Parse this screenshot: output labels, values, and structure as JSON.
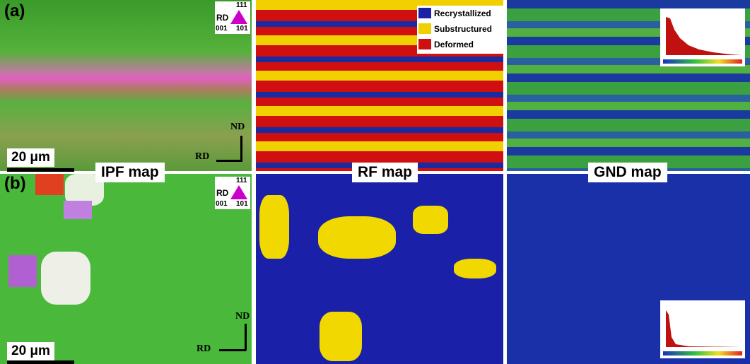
{
  "rows": [
    {
      "label": "(a)",
      "scale_bar": "20 μm",
      "ipf_key": {
        "title": "RD",
        "corners": [
          "111",
          "001",
          "101"
        ]
      },
      "axes": {
        "nd": "ND",
        "rd": "RD"
      }
    },
    {
      "label": "(b)",
      "scale_bar": "20 μm",
      "ipf_key": {
        "title": "RD",
        "corners": [
          "111",
          "001",
          "101"
        ]
      },
      "axes": {
        "nd": "ND",
        "rd": "RD"
      }
    }
  ],
  "map_titles": [
    "IPF map",
    "RF map",
    "GND map"
  ],
  "rf_legend": [
    "Recrystallized",
    "Substructured",
    "Deformed"
  ]
}
